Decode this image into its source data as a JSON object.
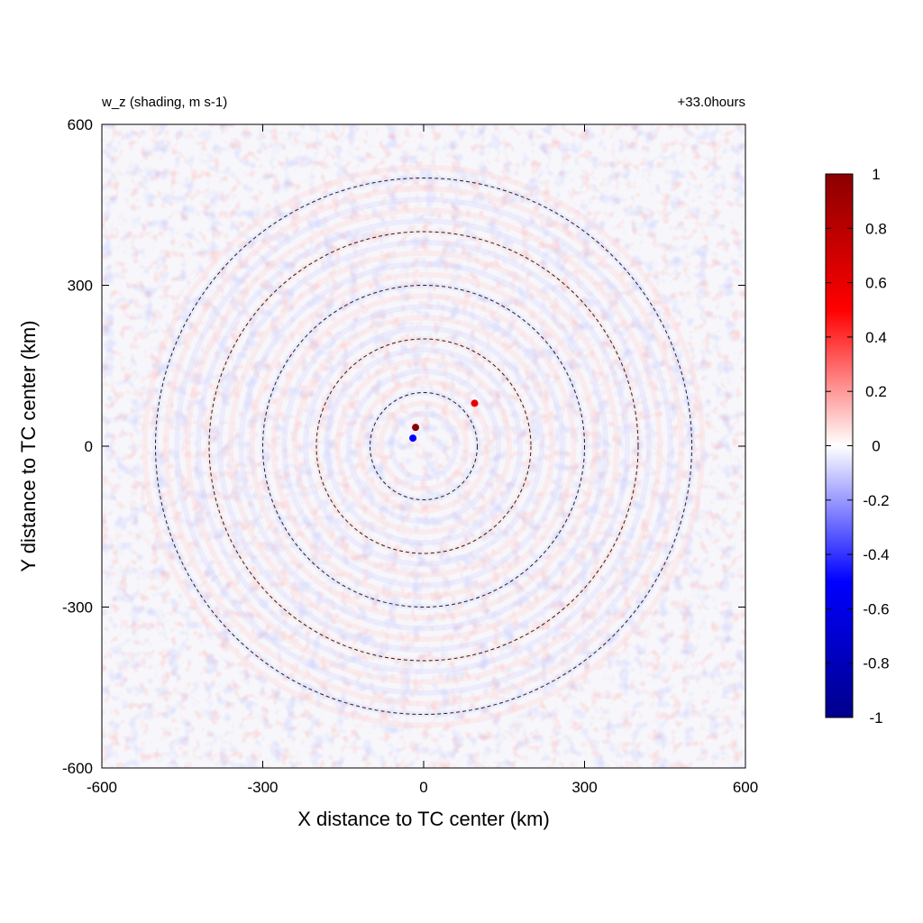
{
  "chart_data": {
    "type": "heatmap",
    "title_left": "w_z (shading, m s-1)",
    "title_right": "+33.0hours",
    "xlabel": "X distance to TC center (km)",
    "ylabel": "Y distance to TC center (km)",
    "xlim": [
      -600,
      600
    ],
    "ylim": [
      -600,
      600
    ],
    "xticks": [
      "-600",
      "-300",
      "0",
      "300",
      "600"
    ],
    "yticks": [
      "600",
      "300",
      "0",
      "-300",
      "-600"
    ],
    "colorbar": {
      "vmin": -1,
      "vmax": 1,
      "ticks": [
        "1",
        "0.8",
        "0.6",
        "0.4",
        "0.2",
        "0",
        "-0.2",
        "-0.4",
        "-0.6",
        "-0.8",
        "-1"
      ],
      "colors": [
        "#00008b",
        "#0000ff",
        "#ffffff",
        "#ff0000",
        "#8b0000"
      ]
    },
    "reference_circles_km": [
      100,
      200,
      300,
      400,
      500
    ],
    "features": [
      {
        "x": -15,
        "y": 35,
        "value": 1.0
      },
      {
        "x": 95,
        "y": 80,
        "value": 0.6
      },
      {
        "x": -20,
        "y": 15,
        "value": -0.5
      }
    ]
  }
}
